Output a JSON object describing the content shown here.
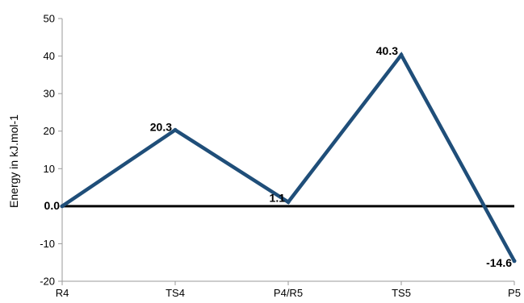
{
  "chart_data": {
    "type": "line",
    "categories": [
      "R4",
      "TS4",
      "P4/R5",
      "TS5",
      "P5"
    ],
    "series": [
      {
        "values": [
          0.0,
          20.3,
          1.1,
          40.3,
          -14.6
        ]
      }
    ],
    "data_labels": [
      "0.0",
      "20.3",
      "1.1",
      "40.3",
      "-14.6"
    ],
    "title": "",
    "xlabel": "",
    "ylabel": "Energy in kJ.mol-1",
    "ylim": [
      -20,
      50
    ],
    "yticks": [
      -20,
      -10,
      0,
      10,
      20,
      30,
      40,
      50
    ],
    "grid": false,
    "legend": "none",
    "colors": {
      "line": "#1f4e79",
      "zero_line": "#000000",
      "axis": "#9a9a9a"
    }
  }
}
